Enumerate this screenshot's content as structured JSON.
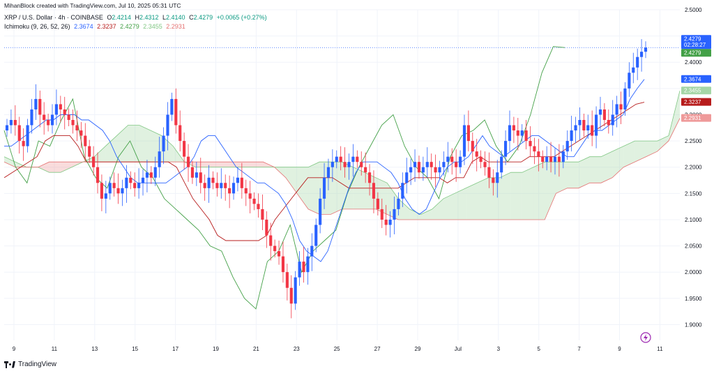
{
  "header": {
    "credit": "MihanBlock created with TradingView.com, Jul 10, 2025 05:31 UTC",
    "symbol": "XRP / U.S. Dollar · 4h · COINBASE",
    "open_label": "O",
    "open": "2.4214",
    "high_label": "H",
    "high": "2.4312",
    "low_label": "L",
    "low": "2.4140",
    "close_label": "C",
    "close": "2.4279",
    "change": "+0.0065 (+0.27%)",
    "ichimoku_label": "Ichimoku (9, 26, 52, 26)",
    "ichimoku_values": [
      "2.3674",
      "2.3237",
      "2.4279",
      "2.3455",
      "2.2931"
    ]
  },
  "footer": {
    "logo_text": "TradingView"
  },
  "colors": {
    "up": "#2962ff",
    "down": "#f23645",
    "conversion": "#2962ff",
    "base": "#b71c1c",
    "lagging": "#43a047",
    "cloud_bull": "#a5d6a7",
    "cloud_bear": "#ef9a9a",
    "tag_price": "#2962ff",
    "tag_green": "#43a047",
    "tag_lightgreen": "#a5d6a7",
    "tag_red": "#b71c1c",
    "tag_lightred": "#ef9a9a"
  },
  "chart_data": {
    "type": "candlestick",
    "y_ticks": [
      "2.5000",
      "2.4000",
      "2.3000",
      "2.2500",
      "2.2000",
      "2.1500",
      "2.1000",
      "2.0500",
      "2.0000",
      "1.9500",
      "1.9000"
    ],
    "ylim": [
      1.87,
      2.5
    ],
    "x_ticks": [
      "9",
      "11",
      "13",
      "15",
      "17",
      "19",
      "21",
      "23",
      "25",
      "27",
      "29",
      "Jul",
      "3",
      "5",
      "7",
      "9",
      "11"
    ],
    "price_tags": [
      {
        "value": "2.4279",
        "extra": "02:28:27",
        "y": 2.4279,
        "color": "tag_price"
      },
      {
        "value": "2.4279",
        "y": 2.4279,
        "color": "tag_green",
        "offset": 1
      },
      {
        "value": "2.3674",
        "y": 2.3674,
        "color": "tag_price"
      },
      {
        "value": "2.3455",
        "y": 2.3455,
        "color": "tag_lightgreen"
      },
      {
        "value": "2.3237",
        "y": 2.3237,
        "color": "tag_red"
      },
      {
        "value": "2.2931",
        "y": 2.2931,
        "color": "tag_lightred"
      }
    ],
    "close_series": [
      2.28,
      2.29,
      2.28,
      2.25,
      2.24,
      2.28,
      2.31,
      2.33,
      2.3,
      2.29,
      2.28,
      2.3,
      2.32,
      2.31,
      2.3,
      2.29,
      2.28,
      2.27,
      2.26,
      2.24,
      2.22,
      2.2,
      2.17,
      2.14,
      2.15,
      2.17,
      2.16,
      2.15,
      2.16,
      2.18,
      2.17,
      2.16,
      2.17,
      2.18,
      2.19,
      2.18,
      2.2,
      2.23,
      2.26,
      2.3,
      2.33,
      2.28,
      2.25,
      2.22,
      2.2,
      2.18,
      2.19,
      2.17,
      2.16,
      2.18,
      2.17,
      2.16,
      2.17,
      2.16,
      2.15,
      2.17,
      2.18,
      2.16,
      2.15,
      2.14,
      2.13,
      2.12,
      2.1,
      2.07,
      2.05,
      2.04,
      2.03,
      2.0,
      1.97,
      1.94,
      1.99,
      2.02,
      2.0,
      2.03,
      2.05,
      2.09,
      2.14,
      2.18,
      2.2,
      2.21,
      2.22,
      2.21,
      2.2,
      2.21,
      2.22,
      2.21,
      2.2,
      2.19,
      2.17,
      2.14,
      2.12,
      2.1,
      2.09,
      2.1,
      2.12,
      2.14,
      2.17,
      2.19,
      2.2,
      2.21,
      2.19,
      2.2,
      2.21,
      2.2,
      2.19,
      2.2,
      2.21,
      2.22,
      2.21,
      2.2,
      2.22,
      2.28,
      2.25,
      2.23,
      2.22,
      2.21,
      2.2,
      2.18,
      2.17,
      2.19,
      2.22,
      2.25,
      2.28,
      2.27,
      2.26,
      2.27,
      2.25,
      2.24,
      2.23,
      2.22,
      2.21,
      2.22,
      2.21,
      2.22,
      2.21,
      2.23,
      2.25,
      2.27,
      2.28,
      2.29,
      2.27,
      2.28,
      2.26,
      2.3,
      2.31,
      2.29,
      2.28,
      2.3,
      2.32,
      2.31,
      2.35,
      2.38,
      2.39,
      2.41,
      2.42,
      2.4279
    ],
    "conversion_line": [
      2.24,
      2.24,
      2.25,
      2.26,
      2.27,
      2.28,
      2.29,
      2.29,
      2.3,
      2.3,
      2.3,
      2.29,
      2.29,
      2.28,
      2.27,
      2.25,
      2.22,
      2.2,
      2.18,
      2.17,
      2.17,
      2.17,
      2.17,
      2.17,
      2.18,
      2.19,
      2.2,
      2.22,
      2.25,
      2.26,
      2.26,
      2.24,
      2.22,
      2.2,
      2.19,
      2.18,
      2.17,
      2.17,
      2.16,
      2.15,
      2.13,
      2.1,
      2.06,
      2.04,
      2.03,
      2.02,
      2.04,
      2.08,
      2.12,
      2.16,
      2.19,
      2.21,
      2.21,
      2.21,
      2.2,
      2.19,
      2.17,
      2.14,
      2.12,
      2.11,
      2.12,
      2.15,
      2.18,
      2.2,
      2.21,
      2.21,
      2.22,
      2.24,
      2.26,
      2.24,
      2.23,
      2.22,
      2.23,
      2.24,
      2.25,
      2.26,
      2.26,
      2.25,
      2.24,
      2.23,
      2.22,
      2.22,
      2.24,
      2.26,
      2.27,
      2.27,
      2.28,
      2.29,
      2.3,
      2.33,
      2.35,
      2.3674
    ],
    "base_line": [
      2.18,
      2.19,
      2.2,
      2.21,
      2.22,
      2.25,
      2.26,
      2.26,
      2.26,
      2.24,
      2.21,
      2.21,
      2.21,
      2.21,
      2.21,
      2.21,
      2.21,
      2.21,
      2.21,
      2.21,
      2.21,
      2.2,
      2.17,
      2.14,
      2.12,
      2.1,
      2.07,
      2.06,
      2.06,
      2.06,
      2.06,
      2.06,
      2.07,
      2.1,
      2.12,
      2.14,
      2.16,
      2.18,
      2.18,
      2.18,
      2.18,
      2.17,
      2.16,
      2.16,
      2.16,
      2.16,
      2.16,
      2.16,
      2.16,
      2.17,
      2.18,
      2.18,
      2.18,
      2.18,
      2.17,
      2.18,
      2.18,
      2.21,
      2.22,
      2.21,
      2.21,
      2.21,
      2.21,
      2.21,
      2.22,
      2.22,
      2.22,
      2.22,
      2.23,
      2.24,
      2.25,
      2.26,
      2.27,
      2.28,
      2.29,
      2.3,
      2.31,
      2.32,
      2.3237
    ],
    "lagging_span": [
      2.27,
      2.2,
      2.17,
      2.25,
      2.24,
      2.29,
      2.33,
      2.22,
      2.18,
      2.16,
      2.22,
      2.25,
      2.2,
      2.18,
      2.14,
      2.12,
      2.1,
      2.08,
      2.05,
      2.04,
      1.99,
      1.95,
      1.93,
      2.02,
      2.04,
      2.09,
      2.0,
      2.04,
      2.06,
      2.08,
      2.15,
      2.2,
      2.24,
      2.28,
      2.3,
      2.24,
      2.2,
      2.18,
      2.14,
      2.22,
      2.26,
      2.27,
      2.29,
      2.24,
      2.21,
      2.24,
      2.3,
      2.38,
      2.43,
      2.4279
    ],
    "span_a": [
      2.22,
      2.21,
      2.2,
      2.2,
      2.19,
      2.19,
      2.2,
      2.21,
      2.22,
      2.24,
      2.26,
      2.28,
      2.28,
      2.27,
      2.26,
      2.24,
      2.21,
      2.2,
      2.2,
      2.2,
      2.2,
      2.2,
      2.2,
      2.2,
      2.2,
      2.2,
      2.2,
      2.2,
      2.21,
      2.21,
      2.21,
      2.2,
      2.19,
      2.18,
      2.17,
      2.14,
      2.12,
      2.11,
      2.12,
      2.14,
      2.15,
      2.16,
      2.17,
      2.18,
      2.18,
      2.19,
      2.19,
      2.2,
      2.21,
      2.21,
      2.21,
      2.21,
      2.22,
      2.22,
      2.23,
      2.24,
      2.25,
      2.25,
      2.25,
      2.26,
      2.3455
    ],
    "span_b": [
      2.21,
      2.2,
      2.2,
      2.2,
      2.21,
      2.21,
      2.21,
      2.21,
      2.21,
      2.21,
      2.21,
      2.21,
      2.21,
      2.21,
      2.21,
      2.21,
      2.21,
      2.21,
      2.21,
      2.21,
      2.21,
      2.21,
      2.21,
      2.21,
      2.2,
      2.18,
      2.15,
      2.12,
      2.11,
      2.11,
      2.12,
      2.12,
      2.12,
      2.12,
      2.11,
      2.1,
      2.1,
      2.1,
      2.1,
      2.1,
      2.1,
      2.1,
      2.1,
      2.1,
      2.1,
      2.1,
      2.1,
      2.1,
      2.1,
      2.15,
      2.16,
      2.16,
      2.17,
      2.17,
      2.18,
      2.2,
      2.21,
      2.22,
      2.23,
      2.25,
      2.2931
    ]
  }
}
